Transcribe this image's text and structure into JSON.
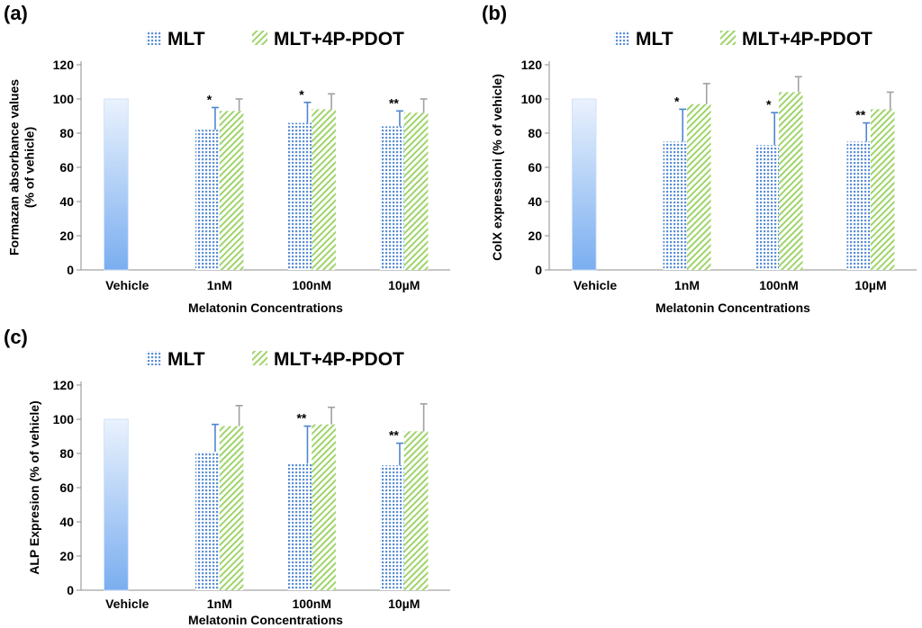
{
  "colors": {
    "vehicle_top": "#eaf2fd",
    "vehicle_bottom": "#7aaef0",
    "mlt": "#5b8fd6",
    "pdot": "#9fd46a",
    "error_mlt": "#4f86d2",
    "error_pdot": "#a0a0a0",
    "axis": "#8c8c8c"
  },
  "chart_data": [
    {
      "type": "bar",
      "panel_label": "(a)",
      "categories": [
        "Vehicle",
        "1nM",
        "100nM",
        "10µM"
      ],
      "ylabel": "Formazan absorbance values\n(% of vehicle)",
      "xlabel": "Melatonin Concentrations",
      "ylim": [
        0,
        120
      ],
      "yticks": [
        0,
        20,
        40,
        60,
        80,
        100,
        120
      ],
      "legend": {
        "placement": "top",
        "entries": [
          "MLT",
          "MLT+4P-PDOT"
        ]
      },
      "vehicle": {
        "value": 100
      },
      "series": [
        {
          "name": "MLT",
          "values": [
            null,
            82,
            86,
            84
          ],
          "errors": [
            null,
            13,
            12,
            9
          ],
          "significance": [
            "",
            "*",
            "*",
            "**"
          ]
        },
        {
          "name": "MLT+4P-PDOT",
          "values": [
            null,
            93,
            94,
            92
          ],
          "errors": [
            null,
            7,
            9,
            8
          ],
          "significance": [
            "",
            "",
            "",
            ""
          ]
        }
      ]
    },
    {
      "type": "bar",
      "panel_label": "(b)",
      "categories": [
        "Vehicle",
        "1nM",
        "100nM",
        "10µM"
      ],
      "ylabel": "ColX expressioni (% of vehicle)",
      "xlabel": "Melatonin Concentrations",
      "ylim": [
        0,
        120
      ],
      "yticks": [
        0,
        20,
        40,
        60,
        80,
        100,
        120
      ],
      "legend": {
        "placement": "top",
        "entries": [
          "MLT",
          "MLT+4P-PDOT"
        ]
      },
      "vehicle": {
        "value": 100
      },
      "series": [
        {
          "name": "MLT",
          "values": [
            null,
            75,
            73,
            75
          ],
          "errors": [
            null,
            19,
            19,
            11
          ],
          "significance": [
            "",
            "*",
            "*",
            "**"
          ]
        },
        {
          "name": "MLT+4P-PDOT",
          "values": [
            null,
            97,
            104,
            94
          ],
          "errors": [
            null,
            12,
            9,
            10
          ],
          "significance": [
            "",
            "",
            "",
            ""
          ]
        }
      ]
    },
    {
      "type": "bar",
      "panel_label": "(c)",
      "categories": [
        "Vehicle",
        "1nM",
        "100nM",
        "10µM"
      ],
      "ylabel": "ALP Expresion (% of vehicle)",
      "xlabel": "Melatonin Concentrations",
      "ylim": [
        0,
        120
      ],
      "yticks": [
        0,
        20,
        40,
        60,
        80,
        100,
        120
      ],
      "legend": {
        "placement": "top",
        "entries": [
          "MLT",
          "MLT+4P-PDOT"
        ]
      },
      "vehicle": {
        "value": 100
      },
      "series": [
        {
          "name": "MLT",
          "values": [
            null,
            81,
            74,
            73
          ],
          "errors": [
            null,
            16,
            22,
            13
          ],
          "significance": [
            "",
            "",
            "**",
            "**"
          ]
        },
        {
          "name": "MLT+4P-PDOT",
          "values": [
            null,
            96,
            97,
            93
          ],
          "errors": [
            null,
            12,
            10,
            16
          ],
          "significance": [
            "",
            "",
            "",
            ""
          ]
        }
      ]
    }
  ]
}
